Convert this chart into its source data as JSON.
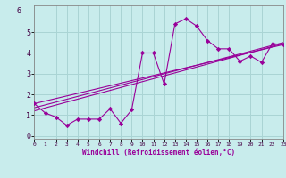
{
  "xlabel": "Windchill (Refroidissement éolien,°C)",
  "background_color": "#c8ecec",
  "grid_color": "#aad4d4",
  "line_color": "#990099",
  "xlim": [
    0,
    23
  ],
  "ylim": [
    -0.15,
    6.3
  ],
  "yticks": [
    0,
    1,
    2,
    3,
    4,
    5
  ],
  "xticks": [
    0,
    1,
    2,
    3,
    4,
    5,
    6,
    7,
    8,
    9,
    10,
    11,
    12,
    13,
    14,
    15,
    16,
    17,
    18,
    19,
    20,
    21,
    22,
    23
  ],
  "main_line": {
    "x": [
      0,
      1,
      2,
      3,
      4,
      5,
      6,
      7,
      8,
      9,
      10,
      11,
      12,
      13,
      14,
      15,
      16,
      17,
      18,
      19,
      20,
      21,
      22,
      23
    ],
    "y": [
      1.55,
      1.1,
      0.9,
      0.5,
      0.8,
      0.8,
      0.8,
      1.3,
      0.6,
      1.25,
      4.0,
      4.0,
      2.5,
      5.4,
      5.65,
      5.3,
      4.6,
      4.2,
      4.2,
      3.6,
      3.85,
      3.55,
      4.45,
      4.4
    ]
  },
  "trend_lines": [
    {
      "x": [
        0,
        23
      ],
      "y": [
        1.55,
        4.4
      ]
    },
    {
      "x": [
        0,
        23
      ],
      "y": [
        1.2,
        4.45
      ]
    },
    {
      "x": [
        0,
        23
      ],
      "y": [
        1.35,
        4.5
      ]
    }
  ]
}
